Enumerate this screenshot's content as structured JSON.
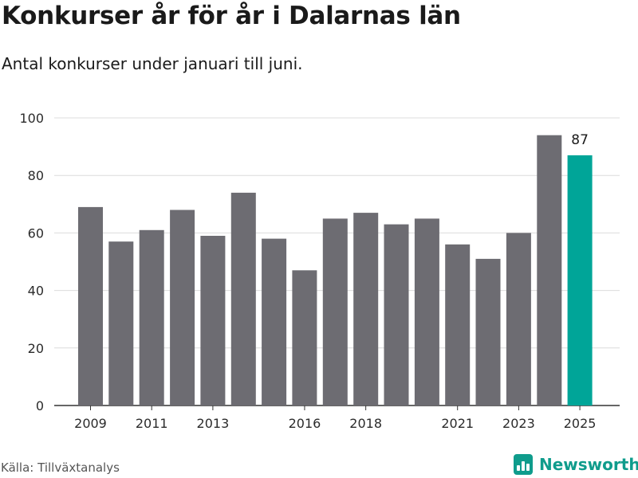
{
  "title": "Konkurser år för år i Dalarnas län",
  "subtitle": "Antal konkurser under januari till juni.",
  "source": "Källa: Tillväxtanalys",
  "brand": {
    "name": "Newsworthy",
    "logo_icon": "bar-chart-logo-icon",
    "color": "#0f9c8c"
  },
  "chart_data": {
    "type": "bar",
    "categories": [
      "2009",
      "2010",
      "2011",
      "2012",
      "2013",
      "2014",
      "2015",
      "2016",
      "2017",
      "2018",
      "2019",
      "2020",
      "2021",
      "2022",
      "2023",
      "2024",
      "2025"
    ],
    "values": [
      69,
      57,
      61,
      68,
      59,
      74,
      58,
      47,
      65,
      67,
      63,
      65,
      56,
      51,
      60,
      94,
      87
    ],
    "x_tick_labels": [
      "2009",
      "2011",
      "2013",
      "2016",
      "2018",
      "2021",
      "2023",
      "2025"
    ],
    "y_ticks": [
      0,
      20,
      40,
      60,
      80,
      100
    ],
    "ylim": [
      0,
      100
    ],
    "grid": true,
    "bar_color": "#6d6c72",
    "highlight": {
      "category": "2025",
      "color": "#00a598",
      "label": "87"
    }
  }
}
